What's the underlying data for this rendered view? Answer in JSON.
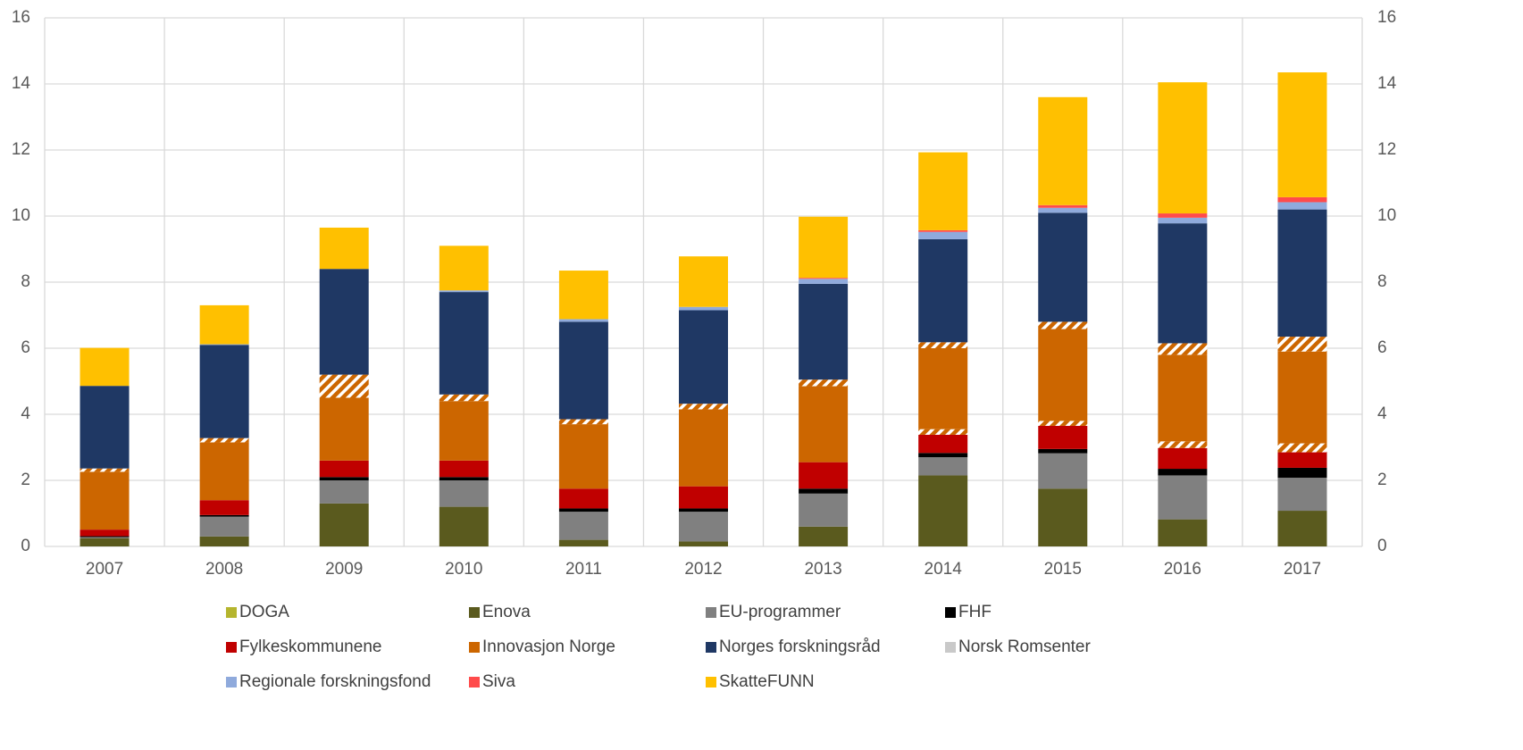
{
  "chart_data": {
    "type": "stacked_bar",
    "categories": [
      "2007",
      "2008",
      "2009",
      "2010",
      "2011",
      "2012",
      "2013",
      "2014",
      "2015",
      "2016",
      "2017"
    ],
    "series": [
      {
        "name": "DOGA",
        "color": "#b5b52e",
        "values": [
          0,
          0,
          0,
          0,
          0,
          0,
          0,
          0,
          0,
          0,
          0
        ]
      },
      {
        "name": "Enova",
        "color": "#5a5a1e",
        "values": [
          0.25,
          0.3,
          1.3,
          1.2,
          0.2,
          0.15,
          0.6,
          2.15,
          1.75,
          0.82,
          1.08
        ]
      },
      {
        "name": "EU-programmer",
        "color": "#808080",
        "values": [
          0.03,
          0.6,
          0.7,
          0.8,
          0.85,
          0.9,
          1.0,
          0.55,
          1.07,
          1.33,
          1.0
        ]
      },
      {
        "name": "FHF",
        "color": "#000000",
        "values": [
          0.03,
          0.05,
          0.1,
          0.1,
          0.1,
          0.1,
          0.15,
          0.13,
          0.13,
          0.2,
          0.3
        ]
      },
      {
        "name": "Fylkeskommunene",
        "color": "#c00000",
        "values": [
          0.2,
          0.45,
          0.5,
          0.5,
          0.6,
          0.67,
          0.8,
          0.55,
          0.7,
          0.63,
          0.47
        ]
      },
      {
        "color": "#cc6600",
        "pattern": "hatch",
        "values": [
          0,
          0,
          0,
          0,
          0,
          0,
          0,
          0.17,
          0.15,
          0.2,
          0.27
        ]
      },
      {
        "name": "Innovasjon Norge",
        "color": "#cc6600",
        "values": [
          1.75,
          1.75,
          1.9,
          1.8,
          1.95,
          2.33,
          2.3,
          2.45,
          2.78,
          2.62,
          2.78
        ]
      },
      {
        "color": "#cc6600",
        "pattern": "hatch",
        "values": [
          0.1,
          0.13,
          0.7,
          0.2,
          0.15,
          0.17,
          0.2,
          0.18,
          0.22,
          0.35,
          0.45
        ]
      },
      {
        "name": "Norges forskningsråd",
        "color": "#1f3864",
        "values": [
          2.5,
          2.82,
          3.2,
          3.1,
          2.95,
          2.83,
          2.9,
          3.12,
          3.3,
          3.63,
          3.85
        ]
      },
      {
        "name": "Norsk Romsenter",
        "color": "#c9c9c9",
        "values": [
          0,
          0,
          0,
          0,
          0,
          0,
          0,
          0,
          0,
          0,
          0
        ]
      },
      {
        "name": "Regionale forskningsfond",
        "color": "#8faadc",
        "values": [
          0,
          0.02,
          0,
          0.05,
          0.08,
          0.1,
          0.15,
          0.22,
          0.15,
          0.17,
          0.22
        ]
      },
      {
        "name": "Siva",
        "color": "#ff4b4b",
        "values": [
          0,
          0,
          0,
          0,
          0,
          0,
          0.03,
          0.05,
          0.08,
          0.13,
          0.15
        ]
      },
      {
        "name": "SkatteFUNN",
        "color": "#ffc000",
        "values": [
          1.15,
          1.18,
          1.25,
          1.35,
          1.47,
          1.53,
          1.85,
          2.36,
          3.27,
          3.97,
          3.78
        ]
      }
    ],
    "ylim": [
      0,
      16
    ],
    "yticks": [
      0,
      2,
      4,
      6,
      8,
      10,
      12,
      14,
      16
    ],
    "y2lim": [
      0,
      16
    ],
    "y2ticks": [
      0,
      2,
      4,
      6,
      8,
      10,
      12,
      14,
      16
    ],
    "grid": true
  }
}
